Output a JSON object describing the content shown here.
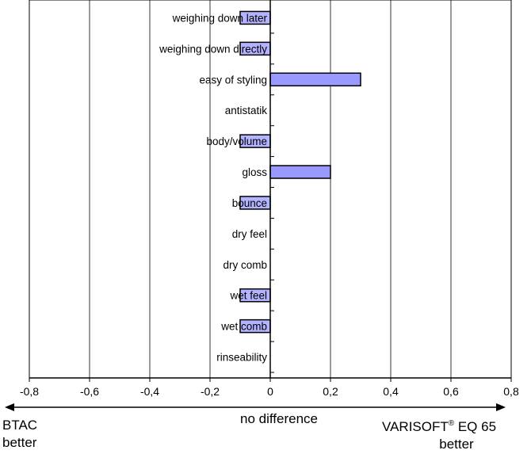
{
  "chart_data": {
    "type": "bar",
    "orientation": "horizontal",
    "categories": [
      "weighing down later",
      "weighing down directly",
      "easy of styling",
      "antistatik",
      "body/volume",
      "gloss",
      "bounce",
      "dry feel",
      "dry comb",
      "wet feel",
      "wet comb",
      "rinseability"
    ],
    "values": [
      -0.1,
      -0.1,
      0.3,
      0,
      -0.1,
      0.2,
      -0.1,
      0,
      0,
      -0.1,
      -0.1,
      0
    ],
    "xlim": [
      -0.8,
      0.8
    ],
    "x_ticks": [
      "-0,8",
      "-0,6",
      "-0,4",
      "-0,2",
      "0",
      "0,2",
      "0,4",
      "0,6",
      "0,8"
    ],
    "grid": "vertical",
    "bar_color": "#9999ff",
    "bar_edge_color": "#000000"
  },
  "annotations": {
    "left": {
      "line1": "BTAC",
      "line2": "better"
    },
    "center": "no difference",
    "right": {
      "line1": "VARISOFT",
      "sup": "®",
      "line1_rest": " EQ 65",
      "line2": "better"
    }
  }
}
